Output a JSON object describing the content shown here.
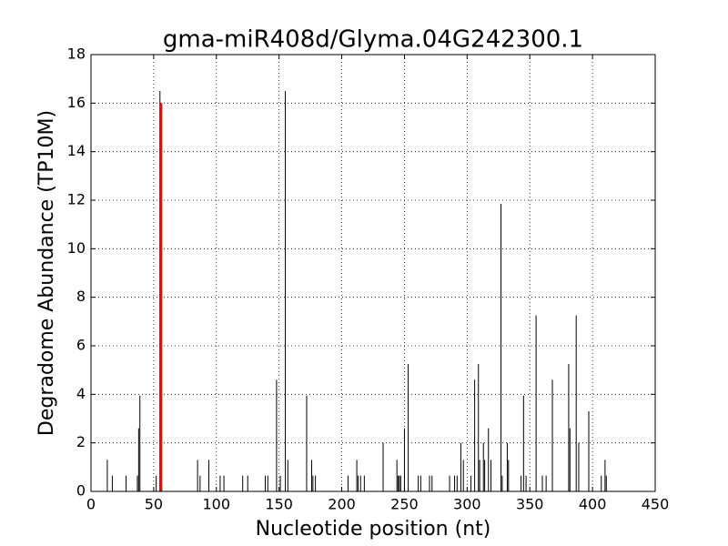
{
  "chart_data": {
    "type": "stem",
    "title": "gma-miR408d/Glyma.04G242300.1",
    "x_label": "Nucleotide position (nt)",
    "y_label": "Degradome Abundance (TP10M)",
    "xlim": [
      0,
      450
    ],
    "xticks": [
      0,
      50,
      100,
      150,
      200,
      250,
      300,
      350,
      400,
      450
    ],
    "ylim": [
      0,
      18
    ],
    "yticks": [
      0,
      2,
      4,
      6,
      8,
      10,
      12,
      14,
      16,
      18
    ],
    "grid": true,
    "series": [
      {
        "color": "#000000",
        "linewidth": 1,
        "x": [
          13,
          17,
          28,
          37,
          38,
          39,
          52,
          55,
          85,
          87,
          94,
          103,
          106,
          121,
          125,
          139,
          141,
          148,
          151,
          155,
          157,
          172,
          176,
          177,
          179,
          205,
          212,
          213,
          215,
          218,
          233,
          244,
          245,
          246,
          247,
          250,
          253,
          261,
          263,
          270,
          272,
          286,
          290,
          292,
          295,
          297,
          303,
          306,
          309,
          310,
          313,
          314,
          317,
          319,
          327,
          328,
          332,
          333,
          343,
          345,
          347,
          355,
          360,
          363,
          368,
          381,
          382,
          387,
          389,
          397,
          407,
          410,
          411
        ],
        "values": [
          1.3,
          0.65,
          0.65,
          0.65,
          2.6,
          3.95,
          0.65,
          16.5,
          1.3,
          0.65,
          1.3,
          0.65,
          0.65,
          0.65,
          0.65,
          0.65,
          0.65,
          4.6,
          0.65,
          16.5,
          1.3,
          3.95,
          1.3,
          0.65,
          0.65,
          0.65,
          1.3,
          0.65,
          0.65,
          0.65,
          2,
          1.3,
          0.65,
          0.65,
          0.65,
          2.6,
          5.25,
          0.65,
          0.65,
          0.65,
          0.65,
          0.65,
          0.65,
          0.65,
          2,
          1.3,
          0.65,
          4.6,
          5.25,
          1.3,
          2,
          1.3,
          2.6,
          1.3,
          11.85,
          0.65,
          2,
          1.3,
          0.65,
          3.95,
          0.65,
          7.25,
          0.65,
          0.65,
          4.6,
          5.25,
          2.6,
          7.25,
          2,
          3.3,
          0.65,
          1.3,
          0.65
        ]
      },
      {
        "color": "#ff0000",
        "linewidth": 2.5,
        "x": [
          56
        ],
        "values": [
          16
        ]
      }
    ]
  }
}
